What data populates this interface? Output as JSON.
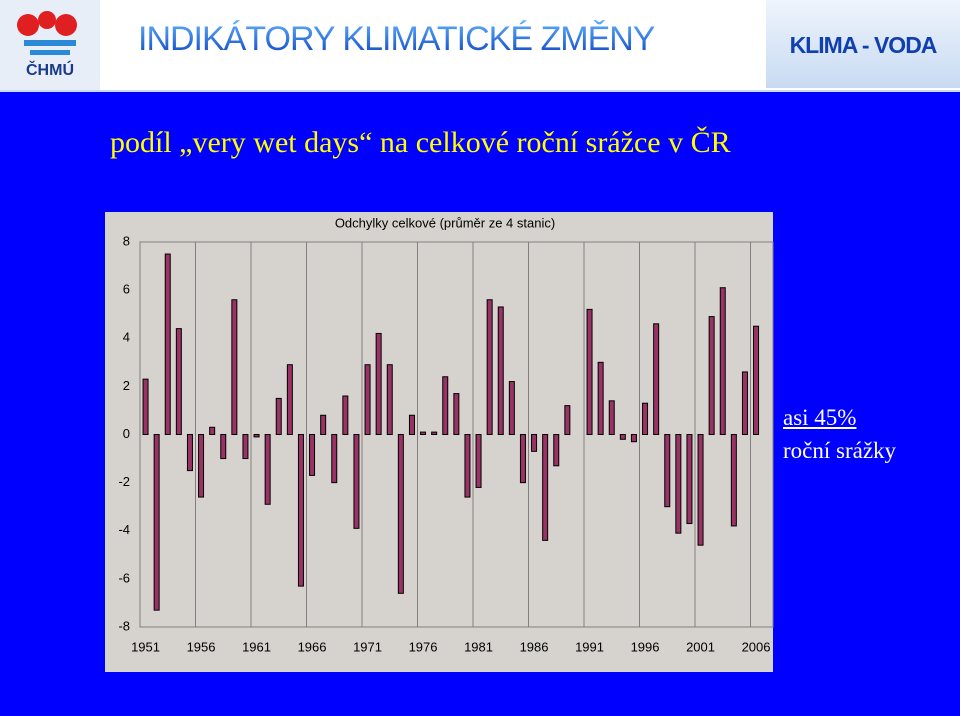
{
  "header": {
    "logo": "ČHMÚ",
    "title": "INDIKÁTORY KLIMATICKÉ ZMĚNY",
    "right": "KLIMA - VODA"
  },
  "slide_title": "podíl „very wet days“ na celkové roční srážce v ČR",
  "chart_data": {
    "type": "bar",
    "title": "Odchylky celkové (průměr ze 4 stanic)",
    "categories": [
      "1951",
      null,
      null,
      null,
      null,
      "1956",
      null,
      null,
      null,
      null,
      "1961",
      null,
      null,
      null,
      null,
      "1966",
      null,
      null,
      null,
      null,
      "1971",
      null,
      null,
      null,
      null,
      "1976",
      null,
      null,
      null,
      null,
      "1981",
      null,
      null,
      null,
      null,
      "1986",
      null,
      null,
      null,
      null,
      "1991",
      null,
      null,
      null,
      null,
      "1996",
      null,
      null,
      null,
      null,
      "2001",
      null,
      null,
      null,
      null,
      "2006"
    ],
    "values": [
      2.3,
      -7.3,
      7.5,
      4.4,
      -1.5,
      -2.6,
      0.3,
      -1.0,
      5.6,
      -1.0,
      -0.1,
      -2.9,
      1.5,
      2.9,
      -6.3,
      -1.7,
      0.8,
      -2.0,
      1.6,
      -3.9,
      2.9,
      4.2,
      2.9,
      -6.6,
      0.8,
      0.1,
      0.1,
      2.4,
      1.7,
      -2.6,
      -2.2,
      5.6,
      5.3,
      2.2,
      -2.0,
      -0.7,
      -4.4,
      -1.3,
      1.2,
      0,
      5.2,
      3.0,
      1.4,
      -0.2,
      -0.3,
      1.3,
      4.6,
      -3.0,
      -4.1,
      -3.7,
      -4.6,
      4.9,
      6.1,
      -3.8,
      2.6,
      4.5
    ],
    "color": "#993366",
    "ylim": [
      -8,
      8
    ],
    "yticks": [
      -8,
      -6,
      -4,
      -2,
      0,
      2,
      4,
      6,
      8
    ],
    "annotation": [
      "asi 45%",
      "roční srážky"
    ]
  }
}
